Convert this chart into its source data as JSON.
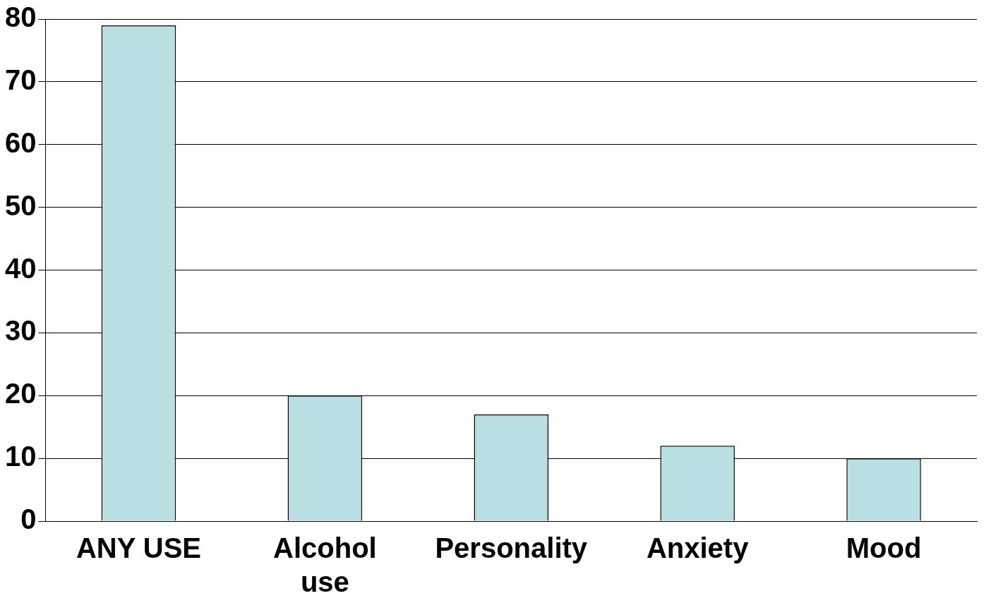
{
  "chart_data": {
    "type": "bar",
    "categories": [
      "ANY USE",
      "Alcohol use",
      "Personality",
      "Anxiety",
      "Mood"
    ],
    "values": [
      79,
      20,
      17,
      12,
      10
    ],
    "color": "#b9dfe3",
    "ylim": [
      0,
      80
    ],
    "yticks": [
      0,
      10,
      20,
      30,
      40,
      50,
      60,
      70,
      80
    ],
    "grid": "y",
    "legend": false
  }
}
